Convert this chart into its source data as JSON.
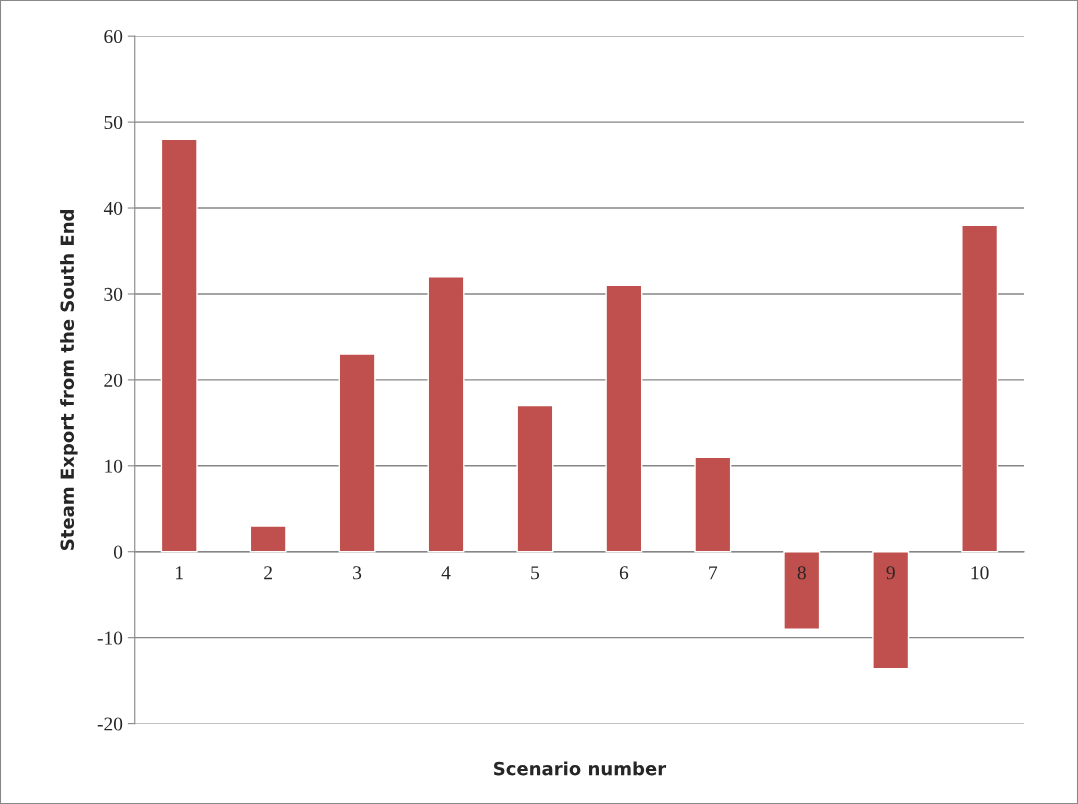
{
  "chart_data": {
    "type": "bar",
    "xlabel": "Scenario number",
    "ylabel": "Steam Export from the South End",
    "categories": [
      "1",
      "2",
      "3",
      "4",
      "5",
      "6",
      "7",
      "8",
      "9",
      "10"
    ],
    "values": [
      48,
      3,
      23,
      32,
      17,
      31,
      11,
      -9,
      -13.6,
      38
    ],
    "color": "#c0504d",
    "ylim": [
      -20,
      60
    ],
    "yticks": [
      -20,
      -10,
      0,
      10,
      20,
      30,
      40,
      50,
      60
    ],
    "grid": "y",
    "legend": false
  }
}
